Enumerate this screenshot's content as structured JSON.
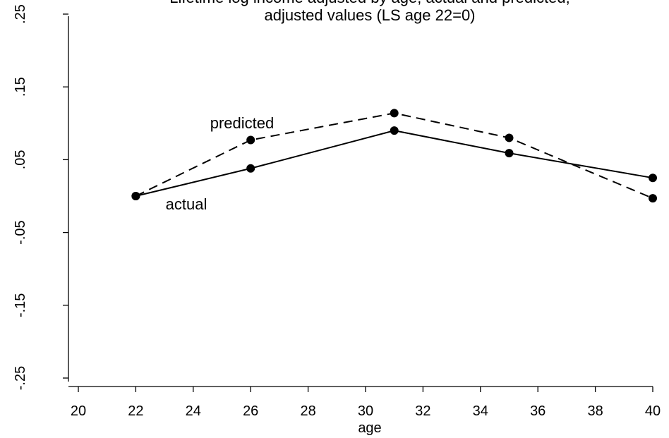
{
  "chart_data": {
    "type": "line",
    "title_lines": [
      "Lifetime log income adjusted by age, actual and predicted,",
      "adjusted values (LS age 22=0)"
    ],
    "xlabel": "age",
    "ylabel": "",
    "xlim": [
      20,
      40
    ],
    "ylim": [
      -0.25,
      0.25
    ],
    "x_ticks": [
      {
        "value": 20,
        "label": "20"
      },
      {
        "value": 22,
        "label": "22"
      },
      {
        "value": 24,
        "label": "24"
      },
      {
        "value": 26,
        "label": "26"
      },
      {
        "value": 28,
        "label": "28"
      },
      {
        "value": 30,
        "label": "30"
      },
      {
        "value": 32,
        "label": "32"
      },
      {
        "value": 34,
        "label": "34"
      },
      {
        "value": 36,
        "label": "36"
      },
      {
        "value": 38,
        "label": "38"
      },
      {
        "value": 40,
        "label": "40"
      }
    ],
    "y_ticks": [
      {
        "value": 0.25,
        "label": ".25"
      },
      {
        "value": 0.15,
        "label": ".15"
      },
      {
        "value": 0.05,
        "label": ".05"
      },
      {
        "value": -0.05,
        "label": "-.05"
      },
      {
        "value": -0.15,
        "label": "-.15"
      },
      {
        "value": -0.25,
        "label": "-.25"
      }
    ],
    "grid": false,
    "x": [
      22,
      26,
      31,
      35,
      40
    ],
    "series": [
      {
        "name": "actual",
        "values": [
          0.0,
          0.038,
          0.09,
          0.059,
          0.025
        ],
        "line_style": "solid",
        "color": "#000000"
      },
      {
        "name": "predicted",
        "values": [
          0.0,
          0.077,
          0.114,
          0.08,
          -0.003
        ],
        "line_style": "dashed",
        "color": "#000000"
      }
    ],
    "annotations": [
      {
        "text": "predicted",
        "series": "predicted"
      },
      {
        "text": "actual",
        "series": "actual"
      }
    ]
  }
}
